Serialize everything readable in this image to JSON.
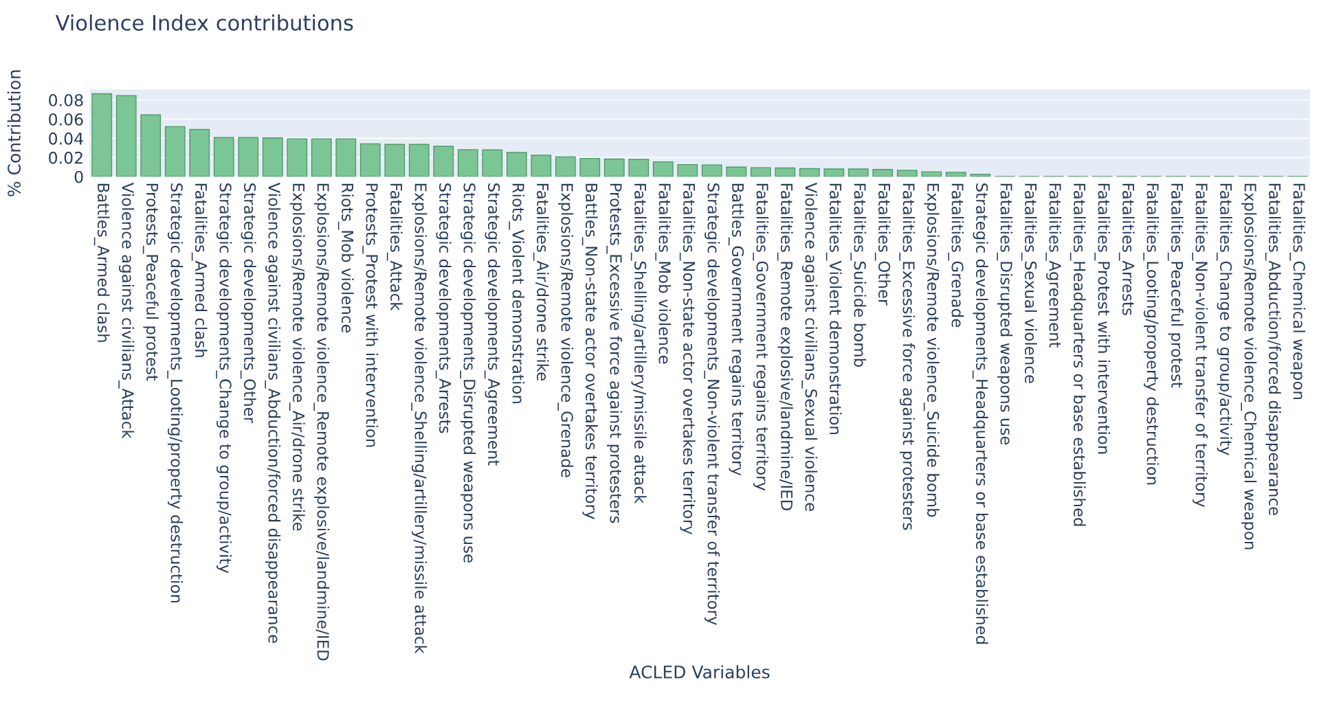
{
  "chart_data": {
    "type": "bar",
    "title": "Violence Index contributions",
    "xlabel": "ACLED Variables",
    "ylabel": "% Contribution",
    "categories": [
      "Battles_Armed clash",
      "Violence against civilians_Attack",
      "Protests_Peaceful protest",
      "Strategic developments_Looting/property destruction",
      "Fatalities_Armed clash",
      "Strategic developments_Change to group/activity",
      "Strategic developments_Other",
      "Violence against civilians_Abduction/forced disappearance",
      "Explosions/Remote violence_Air/drone strike",
      "Explosions/Remote violence_Remote explosive/landmine/IED",
      "Riots_Mob violence",
      "Protests_Protest with intervention",
      "Fatalities_Attack",
      "Explosions/Remote violence_Shelling/artillery/missile attack",
      "Strategic developments_Arrests",
      "Strategic developments_Disrupted weapons use",
      "Strategic developments_Agreement",
      "Riots_Violent demonstration",
      "Fatalities_Air/drone strike",
      "Explosions/Remote violence_Grenade",
      "Battles_Non-state actor overtakes territory",
      "Protests_Excessive force against protesters",
      "Fatalities_Shelling/artillery/missile attack",
      "Fatalities_Mob violence",
      "Fatalities_Non-state actor overtakes territory",
      "Strategic developments_Non-violent transfer of territory",
      "Battles_Government regains territory",
      "Fatalities_Government regains territory",
      "Fatalities_Remote explosive/landmine/IED",
      "Violence against civilians_Sexual violence",
      "Fatalities_Violent demonstration",
      "Fatalities_Suicide bomb",
      "Fatalities_Other",
      "Fatalities_Excessive force against protesters",
      "Explosions/Remote violence_Suicide bomb",
      "Fatalities_Grenade",
      "Strategic developments_Headquarters or base established",
      "Fatalities_Disrupted weapons use",
      "Fatalities_Sexual violence",
      "Fatalities_Agreement",
      "Fatalities_Headquarters or base established",
      "Fatalities_Protest with intervention",
      "Fatalities_Arrests",
      "Fatalities_Looting/property destruction",
      "Fatalities_Peaceful protest",
      "Fatalities_Non-violent transfer of territory",
      "Fatalities_Change to group/activity",
      "Explosions/Remote violence_Chemical weapon",
      "Fatalities_Abduction/forced disappearance",
      "Fatalities_Chemical weapon"
    ],
    "values": [
      0.0865,
      0.0846,
      0.0645,
      0.0522,
      0.0492,
      0.0408,
      0.0408,
      0.0405,
      0.0395,
      0.0395,
      0.0395,
      0.0343,
      0.0337,
      0.0337,
      0.0317,
      0.0282,
      0.0279,
      0.0253,
      0.0224,
      0.0207,
      0.0191,
      0.0185,
      0.0181,
      0.0155,
      0.0126,
      0.0123,
      0.01,
      0.0094,
      0.0091,
      0.0084,
      0.0081,
      0.0081,
      0.0075,
      0.0067,
      0.0051,
      0.0046,
      0.0026,
      0.0003,
      0.0002,
      0.0003,
      0.0003,
      0.0003,
      0.0003,
      0.0003,
      0.0003,
      0.0003,
      0.0003,
      0.0003,
      0.0003,
      0.0003
    ],
    "color": "#7cc594",
    "ylim": [
      0,
      0.091
    ],
    "yticks": [
      0,
      0.02,
      0.04,
      0.06,
      0.08
    ],
    "grid": "y"
  }
}
